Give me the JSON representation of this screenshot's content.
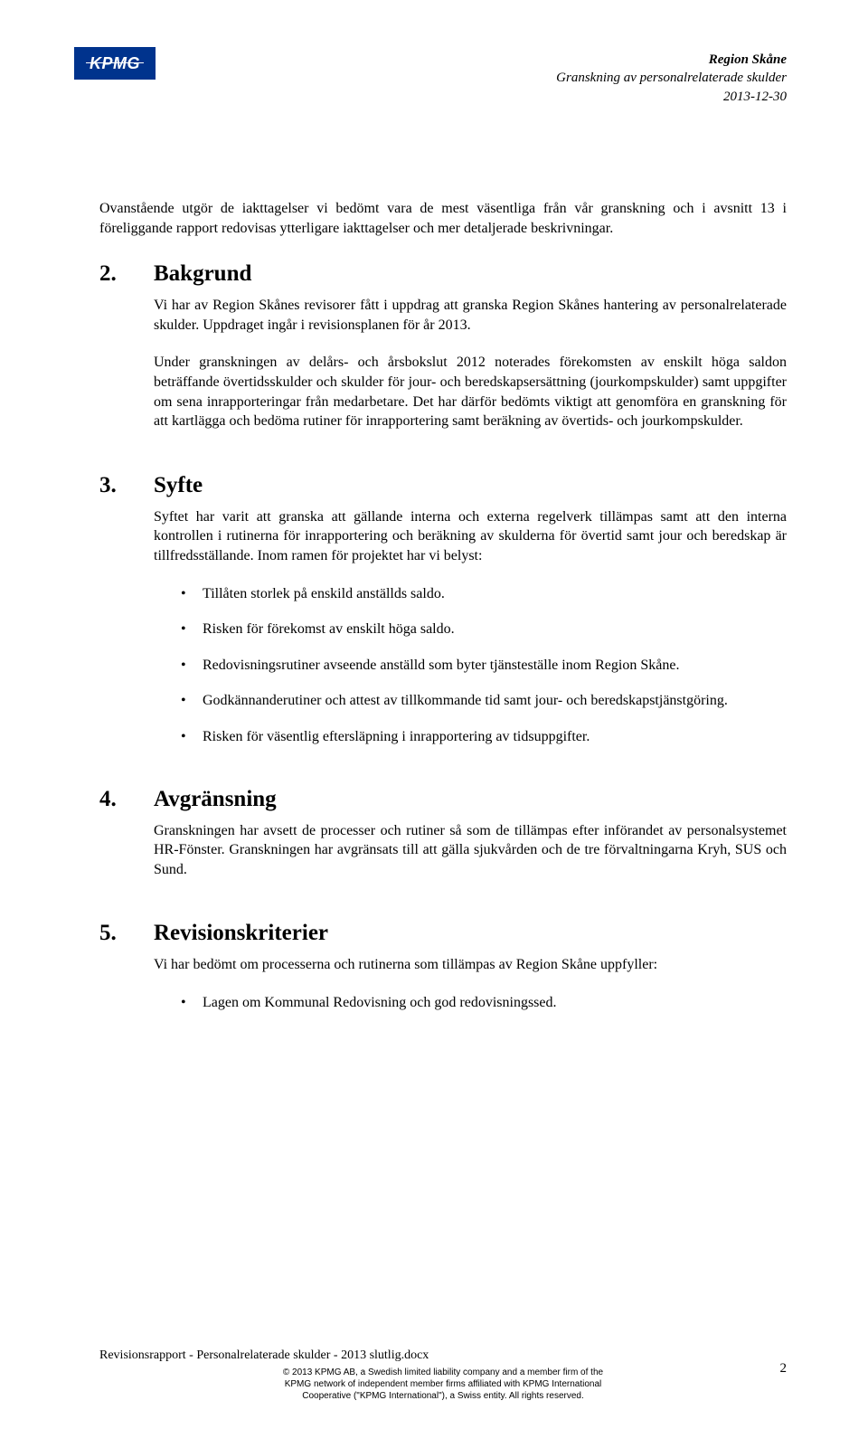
{
  "logo": {
    "text": "KPMG"
  },
  "header": {
    "line1": "Region Skåne",
    "line2": "Granskning av personalrelaterade skulder",
    "line3": "2013-12-30"
  },
  "intro": "Ovanstående utgör de iakttagelser vi bedömt vara de mest väsentliga från vår granskning och i avsnitt 13 i föreliggande rapport redovisas ytterligare iakttagelser och mer detaljerade beskrivningar.",
  "sections": {
    "s2": {
      "num": "2.",
      "title": "Bakgrund",
      "p1": "Vi har av Region Skånes revisorer fått i uppdrag att granska Region Skånes hantering av personalrelaterade skulder. Uppdraget ingår i revisionsplanen för år 2013.",
      "p2": "Under granskningen av delårs- och årsbokslut 2012 noterades förekomsten av enskilt höga saldon beträffande övertidsskulder och skulder för jour- och beredskapsersättning (jourkompskulder) samt uppgifter om sena inrapporteringar från medarbetare. Det har därför bedömts viktigt att genomföra en granskning för att kartlägga och bedöma rutiner för inrapportering samt beräkning av övertids- och jourkompskulder."
    },
    "s3": {
      "num": "3.",
      "title": "Syfte",
      "p1": "Syftet har varit att granska att gällande interna och externa regelverk tillämpas samt att den interna kontrollen i rutinerna för inrapportering och beräkning av skulderna för övertid samt jour och beredskap är tillfredsställande. Inom ramen för projektet har vi belyst:",
      "bullets": [
        "Tillåten storlek på enskild anställds saldo.",
        "Risken för förekomst av enskilt höga saldo.",
        "Redovisningsrutiner avseende anställd som byter tjänsteställe inom Region Skåne.",
        "Godkännanderutiner och attest av tillkommande tid samt jour- och beredskapstjänstgöring.",
        "Risken för väsentlig eftersläpning i inrapportering av tidsuppgifter."
      ]
    },
    "s4": {
      "num": "4.",
      "title": "Avgränsning",
      "p1": "Granskningen har avsett de processer och rutiner så som de tillämpas efter införandet av personalsystemet HR-Fönster. Granskningen har avgränsats till att gälla sjukvården och de tre förvaltningarna Kryh, SUS och Sund."
    },
    "s5": {
      "num": "5.",
      "title": "Revisionskriterier",
      "p1": "Vi har bedömt om processerna och rutinerna som tillämpas av Region Skåne uppfyller:",
      "bullets": [
        "Lagen om Kommunal Redovisning och god redovisningssed."
      ]
    }
  },
  "footer": {
    "line1": "Revisionsrapport - Personalrelaterade skulder - 2013 slutlig.docx",
    "small1": "© 2013 KPMG AB, a Swedish limited liability company and a member firm of the",
    "small2": "KPMG network of independent member firms affiliated with KPMG International",
    "small3": "Cooperative (\"KPMG International\"), a Swiss entity. All rights reserved."
  },
  "pageNumber": "2"
}
